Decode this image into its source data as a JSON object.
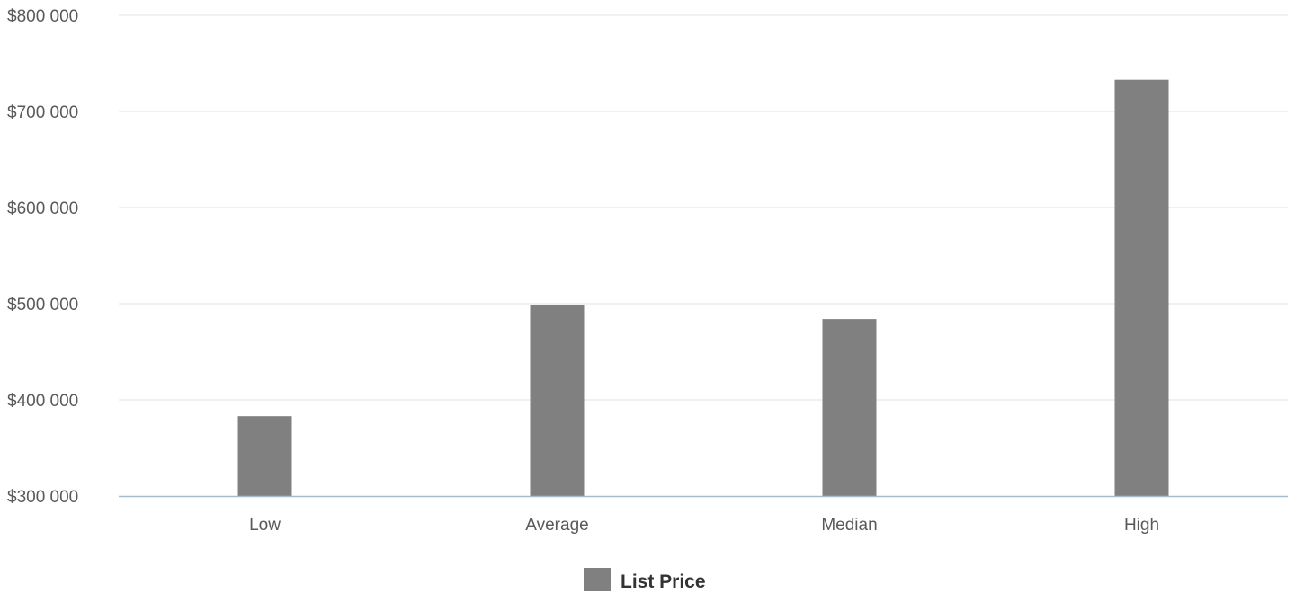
{
  "chart_data": {
    "type": "bar",
    "categories": [
      "Low",
      "Average",
      "Median",
      "High"
    ],
    "series": [
      {
        "name": "List Price",
        "values": [
          383000,
          499000,
          484000,
          733000
        ],
        "color": "#808080"
      }
    ],
    "ylim": [
      300000,
      800000
    ],
    "yticks": [
      300000,
      400000,
      500000,
      600000,
      700000,
      800000
    ],
    "ytick_labels": [
      "$300 000",
      "$400 000",
      "$500 000",
      "$600 000",
      "$700 000",
      "$800 000"
    ],
    "grid": true,
    "grid_color": "#dfe3e8",
    "axis_color": "#a9bccb",
    "legend_position": "bottom-center"
  }
}
